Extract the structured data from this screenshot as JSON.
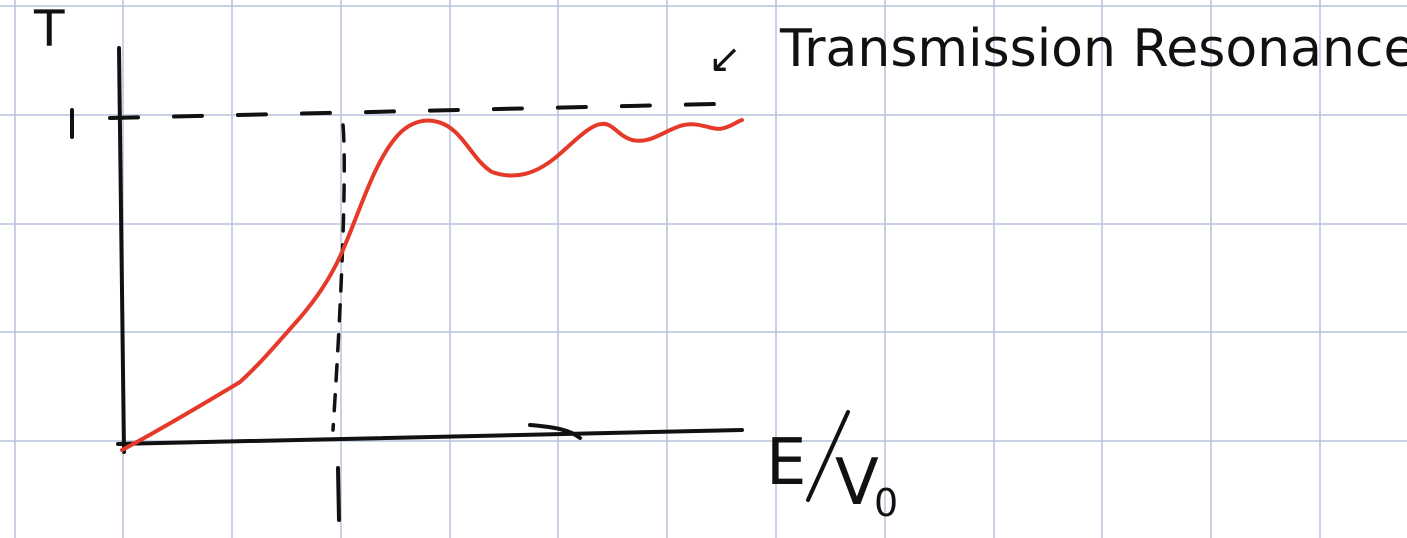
{
  "axes": {
    "y_label": "T",
    "x_label_e": "E",
    "x_label_v": "V",
    "x_label_sub": "0",
    "y_tick": "1",
    "x_tick": "1"
  },
  "annotation": {
    "arrow_glyph": "↙",
    "text": "Transmission Resonance"
  },
  "colors": {
    "grid": "#b7c3dc",
    "ink": "#111111",
    "curve": "#e53a2a"
  }
}
